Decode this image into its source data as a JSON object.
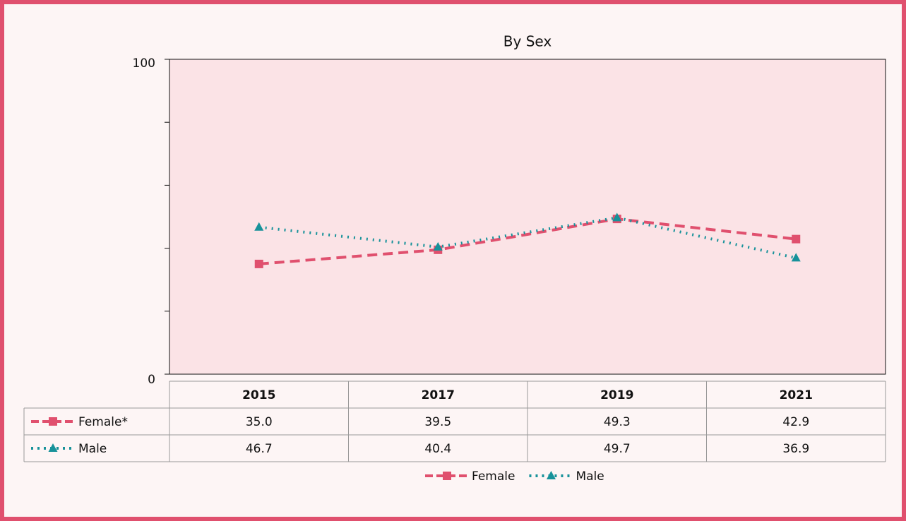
{
  "chart_data": {
    "type": "line",
    "title": "By Sex",
    "categories": [
      "2015",
      "2017",
      "2019",
      "2021"
    ],
    "series": [
      {
        "name": "Female",
        "table_name": "Female*",
        "color": "#e0506e",
        "dash": "dashed",
        "marker": "square",
        "values": [
          35.0,
          39.5,
          49.3,
          42.9
        ],
        "value_labels": [
          "35.0",
          "39.5",
          "49.3",
          "42.9"
        ]
      },
      {
        "name": "Male",
        "table_name": "Male",
        "color": "#17929a",
        "dash": "dotted",
        "marker": "triangle",
        "values": [
          46.7,
          40.4,
          49.7,
          36.9
        ],
        "value_labels": [
          "46.7",
          "40.4",
          "49.7",
          "36.9"
        ]
      }
    ],
    "ylim": [
      0,
      100
    ],
    "yticks": [
      0,
      100
    ],
    "yminor_ticks": [
      20,
      40,
      60,
      80
    ],
    "legend": "bottom"
  }
}
